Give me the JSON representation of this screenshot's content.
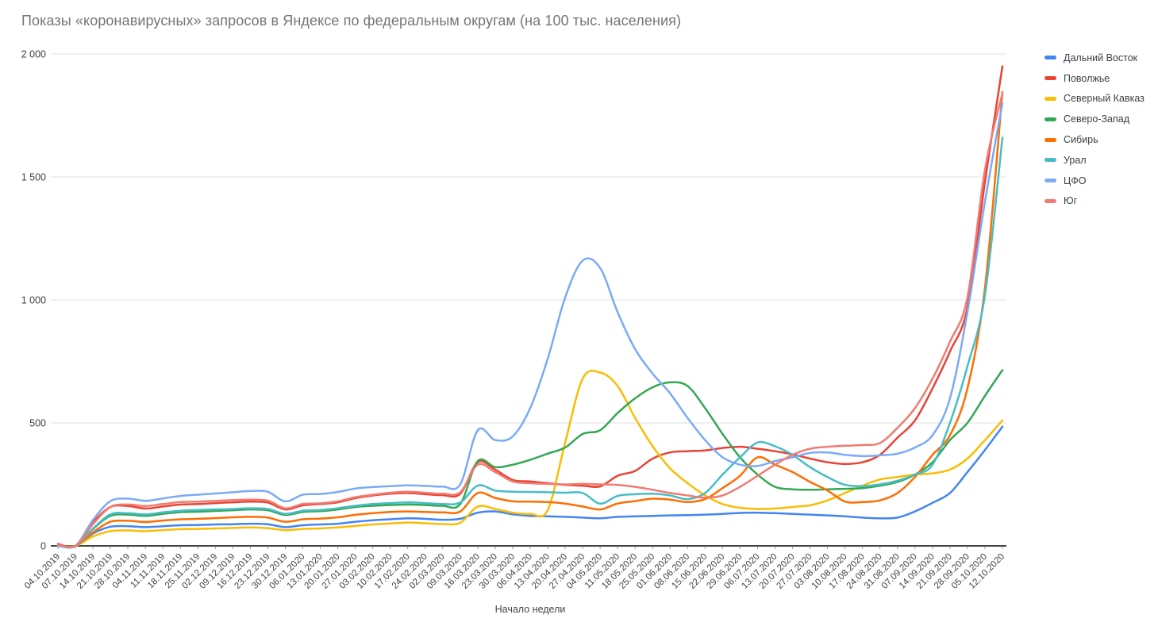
{
  "title": "Показы «коронавирусных» запросов в Яндексе по федеральным округам (на 100 тыс. населения)",
  "axis": {
    "x_title": "Начало недели"
  },
  "chart_data": {
    "type": "line",
    "title": "Показы «коронавирусных» запросов в Яндексе по федеральным округам (на 100 тыс. населения)",
    "xlabel": "Начало недели",
    "ylabel": "",
    "ylim": [
      0,
      2000
    ],
    "grid": true,
    "legend_position": "right",
    "y_ticks": [
      {
        "value": 0,
        "label": "0"
      },
      {
        "value": 500,
        "label": "500"
      },
      {
        "value": 1000,
        "label": "1 000"
      },
      {
        "value": 1500,
        "label": "1 500"
      },
      {
        "value": 2000,
        "label": "2 000"
      }
    ],
    "categories": [
      "04.10.2019",
      "07.10.2019",
      "14.10.2019",
      "21.10.2019",
      "28.10.2019",
      "04.11.2019",
      "11.11.2019",
      "18.11.2019",
      "25.11.2019",
      "02.12.2019",
      "09.12.2019",
      "16.12.2019",
      "23.12.2019",
      "30.12.2019",
      "06.01.2020",
      "13.01.2020",
      "20.01.2020",
      "27.01.2020",
      "03.02.2020",
      "10.02.2020",
      "17.02.2020",
      "24.02.2020",
      "02.03.2020",
      "09.03.2020",
      "16.03.2020",
      "23.03.2020",
      "30.03.2020",
      "06.04.2020",
      "13.04.2020",
      "20.04.2020",
      "27.04.2020",
      "04.05.2020",
      "11.05.2020",
      "18.05.2020",
      "25.05.2020",
      "01.06.2020",
      "08.06.2020",
      "15.06.2020",
      "22.06.2020",
      "29.06.2020",
      "06.07.2020",
      "13.07.2020",
      "20.07.2020",
      "27.07.2020",
      "03.08.2020",
      "10.08.2020",
      "17.08.2020",
      "24.08.2020",
      "31.08.2020",
      "07.09.2020",
      "14.09.2020",
      "21.09.2020",
      "28.09.2020",
      "05.10.2020",
      "12.10.2020"
    ],
    "series": [
      {
        "name": "Дальний Восток",
        "color": "#4285F4",
        "values": [
          0,
          0,
          50,
          78,
          80,
          76,
          80,
          84,
          85,
          87,
          88,
          90,
          88,
          76,
          84,
          87,
          90,
          98,
          104,
          108,
          112,
          110,
          106,
          110,
          135,
          140,
          128,
          122,
          120,
          118,
          115,
          112,
          118,
          120,
          122,
          124,
          125,
          127,
          130,
          134,
          135,
          133,
          130,
          127,
          124,
          120,
          115,
          112,
          115,
          140,
          175,
          215,
          300,
          390,
          485
        ]
      },
      {
        "name": "Поволжье",
        "color": "#EA4335",
        "values": [
          8,
          0,
          95,
          158,
          162,
          152,
          160,
          168,
          170,
          174,
          177,
          180,
          176,
          148,
          165,
          170,
          177,
          194,
          205,
          212,
          215,
          210,
          206,
          212,
          340,
          310,
          268,
          262,
          255,
          248,
          245,
          242,
          285,
          305,
          355,
          380,
          385,
          388,
          398,
          403,
          395,
          385,
          372,
          355,
          340,
          333,
          340,
          370,
          440,
          510,
          640,
          790,
          970,
          1480,
          1950
        ]
      },
      {
        "name": "Северный Кавказ",
        "color": "#FBBC04",
        "values": [
          0,
          0,
          38,
          60,
          63,
          60,
          64,
          68,
          69,
          71,
          73,
          75,
          72,
          64,
          69,
          71,
          75,
          81,
          87,
          91,
          95,
          92,
          89,
          94,
          160,
          150,
          135,
          130,
          145,
          420,
          680,
          705,
          650,
          520,
          405,
          315,
          255,
          205,
          170,
          155,
          150,
          152,
          158,
          165,
          185,
          215,
          245,
          270,
          280,
          290,
          295,
          310,
          355,
          430,
          510
        ]
      },
      {
        "name": "Северо-Запад",
        "color": "#34A853",
        "values": [
          0,
          0,
          68,
          122,
          127,
          122,
          130,
          137,
          139,
          142,
          145,
          148,
          145,
          126,
          138,
          141,
          148,
          158,
          163,
          166,
          168,
          166,
          163,
          170,
          345,
          320,
          330,
          350,
          375,
          400,
          455,
          470,
          540,
          600,
          645,
          665,
          650,
          560,
          455,
          360,
          290,
          240,
          230,
          228,
          230,
          232,
          235,
          245,
          260,
          290,
          340,
          430,
          500,
          610,
          715
        ]
      },
      {
        "name": "Сибирь",
        "color": "#FF6D01",
        "values": [
          0,
          0,
          55,
          98,
          102,
          97,
          103,
          108,
          110,
          113,
          116,
          118,
          115,
          98,
          108,
          111,
          116,
          126,
          133,
          138,
          140,
          138,
          136,
          140,
          215,
          195,
          181,
          180,
          178,
          172,
          160,
          148,
          172,
          182,
          192,
          188,
          178,
          190,
          235,
          285,
          360,
          330,
          300,
          260,
          225,
          180,
          178,
          185,
          215,
          280,
          370,
          450,
          640,
          1050,
          1845
        ]
      },
      {
        "name": "Урал",
        "color": "#46BDC6",
        "values": [
          0,
          0,
          70,
          128,
          133,
          128,
          136,
          143,
          146,
          148,
          150,
          153,
          150,
          130,
          143,
          146,
          153,
          163,
          170,
          174,
          177,
          174,
          170,
          176,
          245,
          225,
          220,
          219,
          218,
          216,
          215,
          172,
          203,
          210,
          212,
          205,
          190,
          215,
          290,
          360,
          420,
          405,
          370,
          320,
          280,
          248,
          243,
          250,
          265,
          290,
          330,
          500,
          730,
          1020,
          1660
        ]
      },
      {
        "name": "ЦФО",
        "color": "#7BAAF7",
        "values": [
          0,
          0,
          105,
          182,
          192,
          183,
          193,
          203,
          208,
          213,
          218,
          223,
          220,
          181,
          208,
          211,
          219,
          233,
          239,
          243,
          246,
          244,
          241,
          250,
          470,
          430,
          445,
          560,
          760,
          1010,
          1160,
          1130,
          950,
          800,
          700,
          620,
          520,
          430,
          360,
          330,
          325,
          345,
          360,
          378,
          380,
          370,
          365,
          368,
          375,
          400,
          450,
          600,
          950,
          1400,
          1800
        ]
      },
      {
        "name": "Юг",
        "color": "#F07B72",
        "values": [
          5,
          0,
          88,
          158,
          168,
          162,
          170,
          178,
          180,
          183,
          186,
          188,
          184,
          153,
          170,
          173,
          181,
          198,
          208,
          216,
          220,
          216,
          212,
          218,
          330,
          300,
          262,
          255,
          252,
          250,
          252,
          250,
          248,
          240,
          228,
          215,
          205,
          196,
          205,
          240,
          285,
          330,
          370,
          395,
          403,
          407,
          410,
          418,
          480,
          560,
          680,
          830,
          1010,
          1530,
          1840
        ]
      }
    ],
    "style": {
      "gridline_color": "#e0e0e0",
      "baseline_color": "#424242",
      "tick_color": "#9e9e9e",
      "axis_text_color": "#424242",
      "title_color": "#757575",
      "legend_text_color": "#3c4043"
    }
  }
}
